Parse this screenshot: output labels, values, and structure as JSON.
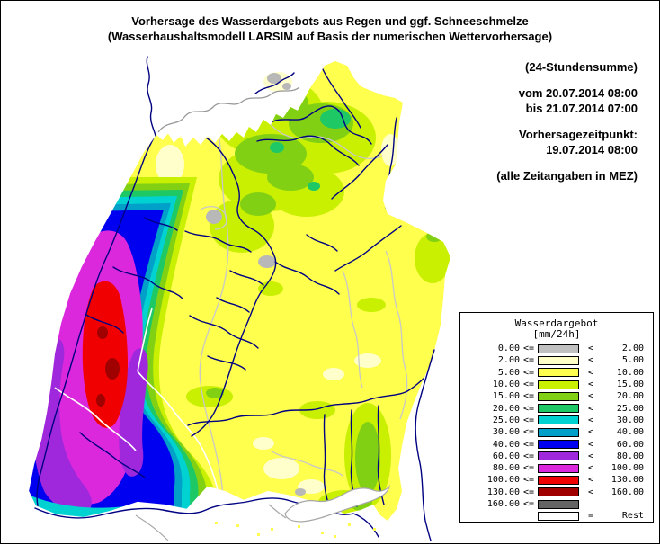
{
  "title": {
    "line1": "Vorhersage des Wasserdargebots aus Regen und ggf. Schneeschmelze",
    "line2": "(Wasserhaushaltsmodell LARSIM auf Basis der numerischen Wettervorhersage)"
  },
  "info": {
    "sum_label": "(24-Stundensumme)",
    "period_from": "vom 20.07.2014 08:00",
    "period_to": "bis 21.07.2014 07:00",
    "forecast_time_label": "Vorhersagezeitpunkt:",
    "forecast_time": "19.07.2014 08:00",
    "timezone_note": "(alle Zeitangaben in MEZ)"
  },
  "legend": {
    "title": "Wasserdargebot",
    "unit": "[mm/24h]",
    "entries": [
      {
        "min": "0.00",
        "le": "<=",
        "color": "#C0C0C0",
        "lt": "<",
        "max": "2.00"
      },
      {
        "min": "2.00",
        "le": "<=",
        "color": "#FFFFC8",
        "lt": "<",
        "max": "5.00"
      },
      {
        "min": "5.00",
        "le": "<=",
        "color": "#FFFF50",
        "lt": "<",
        "max": "10.00"
      },
      {
        "min": "10.00",
        "le": "<=",
        "color": "#C8F000",
        "lt": "<",
        "max": "15.00"
      },
      {
        "min": "15.00",
        "le": "<=",
        "color": "#82D014",
        "lt": "<",
        "max": "20.00"
      },
      {
        "min": "20.00",
        "le": "<=",
        "color": "#1EC864",
        "lt": "<",
        "max": "25.00"
      },
      {
        "min": "25.00",
        "le": "<=",
        "color": "#00D2D2",
        "lt": "<",
        "max": "30.00"
      },
      {
        "min": "30.00",
        "le": "<=",
        "color": "#00A0C8",
        "lt": "<",
        "max": "40.00"
      },
      {
        "min": "40.00",
        "le": "<=",
        "color": "#0000F0",
        "lt": "<",
        "max": "60.00"
      },
      {
        "min": "60.00",
        "le": "<=",
        "color": "#A028DC",
        "lt": "<",
        "max": "80.00"
      },
      {
        "min": "80.00",
        "le": "<=",
        "color": "#DC28DC",
        "lt": "<",
        "max": "100.00"
      },
      {
        "min": "100.00",
        "le": "<=",
        "color": "#F00000",
        "lt": "<",
        "max": "130.00"
      },
      {
        "min": "130.00",
        "le": "<=",
        "color": "#A00000",
        "lt": "<",
        "max": "160.00"
      },
      {
        "min": "160.00",
        "le": "<=",
        "color": "#646464",
        "lt": "",
        "max": ""
      },
      {
        "min": "",
        "le": "",
        "color": "#FFFFFF",
        "lt": "=",
        "max": "Rest"
      }
    ]
  },
  "palette": {
    "base": "#FFFF4D",
    "pale": "#FFFFCC",
    "ygreen": "#C8F000",
    "green": "#82D014",
    "emerald": "#1EC864",
    "cyan": "#00D2D2",
    "dkcyan": "#00A0C8",
    "blue": "#0000F0",
    "purple": "#A028DC",
    "magenta": "#DC28DC",
    "red": "#F00000",
    "darkred": "#A00000",
    "urban": "#B8B8B8",
    "river": "#000082",
    "district": "#C8C8C8",
    "state_border": "#989898",
    "white": "#FFFFFF",
    "lake_shore": "#A8A8A8"
  }
}
